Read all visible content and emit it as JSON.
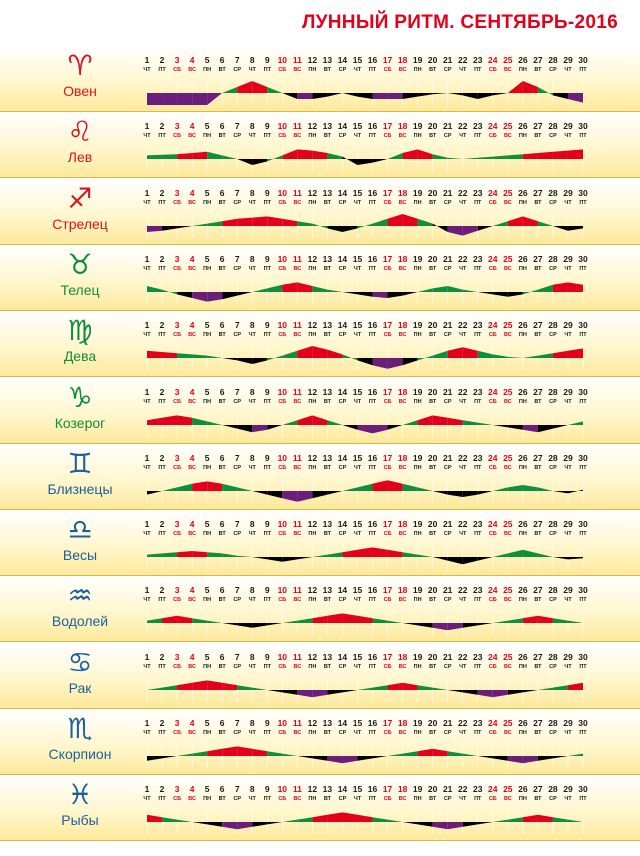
{
  "title": "ЛУННЫЙ РИТМ. СЕНТЯБРЬ-2016",
  "colors": {
    "up_strong": "#e3001b",
    "up_mild": "#0e8f3c",
    "down_strong": "#6b1d7c",
    "down_mild": "#000000",
    "weekend_text": "#e3001b",
    "weekday_text": "#1a1a1a"
  },
  "chart_data": {
    "type": "area",
    "x_days": [
      1,
      2,
      3,
      4,
      5,
      6,
      7,
      8,
      9,
      10,
      11,
      12,
      13,
      14,
      15,
      16,
      17,
      18,
      19,
      20,
      21,
      22,
      23,
      24,
      25,
      26,
      27,
      28,
      29,
      30
    ],
    "weekdays": [
      "ЧТ",
      "ПТ",
      "СБ",
      "ВС",
      "ПН",
      "ВТ",
      "СР",
      "ЧТ",
      "ПТ",
      "СБ",
      "ВС",
      "ПН",
      "ВТ",
      "СР",
      "ЧТ",
      "ПТ",
      "СБ",
      "ВС",
      "ПН",
      "ВТ",
      "СР",
      "ЧТ",
      "ПТ",
      "СБ",
      "ВС",
      "ПН",
      "ВТ",
      "СР",
      "ЧТ",
      "ПТ"
    ],
    "weekend_days": [
      3,
      4,
      10,
      11,
      17,
      18,
      24,
      25
    ],
    "rows": [
      {
        "name": "Овен",
        "glyph": "♈",
        "color": "#d8141f",
        "profile": [
          -5,
          -4,
          -3,
          -2,
          -1,
          0,
          0.5,
          1,
          0.5,
          0,
          -0.5,
          -0.5,
          -0.3,
          0,
          -0.3,
          -0.5,
          -0.5,
          -0.5,
          -0.3,
          -0.1,
          0,
          -0.2,
          -0.5,
          -0.2,
          0,
          1,
          0.5,
          -0.2,
          -0.5,
          -0.8
        ]
      },
      {
        "name": "Лев",
        "glyph": "♌",
        "color": "#d8141f",
        "profile": [
          0.3,
          0.35,
          0.4,
          0.5,
          0.6,
          0.3,
          0,
          -0.5,
          -0.2,
          0.3,
          0.8,
          0.7,
          0.5,
          0.2,
          -0.5,
          -0.3,
          0,
          0.5,
          0.8,
          0.4,
          0.1,
          0,
          0.1,
          0.2,
          0.3,
          0.4,
          0.5,
          0.6,
          0.7,
          0.8
        ]
      },
      {
        "name": "Стрелец",
        "glyph": "♐",
        "color": "#d8141f",
        "profile": [
          -0.5,
          -0.4,
          -0.2,
          0,
          0.2,
          0.4,
          0.6,
          0.7,
          0.8,
          0.6,
          0.4,
          0.2,
          -0.2,
          -0.5,
          -0.2,
          0.2,
          0.6,
          1,
          0.6,
          0.2,
          -0.5,
          -0.8,
          -0.4,
          0,
          0.4,
          0.8,
          0.4,
          0,
          -0.4,
          -0.2
        ]
      },
      {
        "name": "Телец",
        "glyph": "♉",
        "color": "#0e8f3c",
        "profile": [
          0.5,
          0.2,
          -0.2,
          -0.5,
          -0.8,
          -0.6,
          -0.3,
          0,
          0.3,
          0.6,
          0.8,
          0.5,
          0.2,
          0,
          -0.2,
          -0.4,
          -0.5,
          -0.3,
          0,
          0.3,
          0.5,
          0.2,
          0,
          -0.2,
          -0.4,
          -0.2,
          0.2,
          0.6,
          0.8,
          0.6
        ]
      },
      {
        "name": "Дева",
        "glyph": "♍",
        "color": "#0e8f3c",
        "profile": [
          0.6,
          0.5,
          0.4,
          0.3,
          0.2,
          0,
          -0.2,
          -0.5,
          -0.2,
          0.2,
          0.6,
          1,
          0.7,
          0.3,
          -0.2,
          -0.6,
          -0.9,
          -0.6,
          -0.2,
          0.2,
          0.6,
          0.9,
          0.6,
          0.3,
          0.1,
          0,
          0.2,
          0.4,
          0.6,
          0.8
        ]
      },
      {
        "name": "Козерог",
        "glyph": "♑",
        "color": "#0e8f3c",
        "profile": [
          0.4,
          0.6,
          0.8,
          0.6,
          0.3,
          0,
          -0.3,
          -0.6,
          -0.4,
          0,
          0.4,
          0.8,
          0.4,
          0,
          -0.4,
          -0.7,
          -0.4,
          0,
          0.4,
          0.8,
          0.6,
          0.4,
          0.2,
          0,
          -0.2,
          -0.4,
          -0.6,
          -0.3,
          0,
          0.3
        ]
      },
      {
        "name": "Близнецы",
        "glyph": "♊",
        "color": "#1b5f9e",
        "profile": [
          -0.3,
          0,
          0.3,
          0.6,
          0.8,
          0.6,
          0.3,
          0,
          -0.3,
          -0.6,
          -0.9,
          -0.6,
          -0.3,
          0,
          0.3,
          0.6,
          0.9,
          0.6,
          0.3,
          0,
          -0.3,
          -0.5,
          -0.3,
          0,
          0.3,
          0.5,
          0.3,
          0,
          -0.2,
          0.1
        ]
      },
      {
        "name": "Весы",
        "glyph": "♎",
        "color": "#1b5f9e",
        "profile": [
          0.2,
          0.3,
          0.4,
          0.5,
          0.4,
          0.3,
          0.1,
          0,
          -0.2,
          -0.4,
          -0.2,
          0,
          0.2,
          0.4,
          0.6,
          0.8,
          0.6,
          0.4,
          0.2,
          0,
          -0.3,
          -0.6,
          -0.3,
          0,
          0.3,
          0.6,
          0.3,
          0,
          -0.2,
          -0.1
        ]
      },
      {
        "name": "Водолей",
        "glyph": "♒",
        "color": "#1b5f9e",
        "profile": [
          0.2,
          0.4,
          0.6,
          0.4,
          0.2,
          0,
          -0.2,
          -0.4,
          -0.2,
          0,
          0.2,
          0.4,
          0.6,
          0.8,
          0.6,
          0.4,
          0.2,
          0,
          -0.2,
          -0.4,
          -0.6,
          -0.4,
          -0.2,
          0,
          0.2,
          0.4,
          0.6,
          0.4,
          0.2,
          0
        ]
      },
      {
        "name": "Рак",
        "glyph": "♋",
        "color": "#1b5f9e",
        "profile": [
          0,
          0.2,
          0.4,
          0.6,
          0.8,
          0.6,
          0.4,
          0.2,
          0,
          -0.2,
          -0.4,
          -0.6,
          -0.4,
          -0.2,
          0,
          0.2,
          0.4,
          0.6,
          0.4,
          0.2,
          0,
          -0.2,
          -0.4,
          -0.6,
          -0.4,
          -0.2,
          0,
          0.2,
          0.4,
          0.6
        ]
      },
      {
        "name": "Скорпион",
        "glyph": "♏",
        "color": "#1b5f9e",
        "profile": [
          -0.4,
          -0.2,
          0,
          0.2,
          0.4,
          0.6,
          0.8,
          0.6,
          0.4,
          0.2,
          0,
          -0.2,
          -0.4,
          -0.6,
          -0.4,
          -0.2,
          0,
          0.2,
          0.4,
          0.6,
          0.4,
          0.2,
          0,
          -0.2,
          -0.4,
          -0.6,
          -0.4,
          -0.2,
          0,
          0.2
        ]
      },
      {
        "name": "Рыбы",
        "glyph": "♓",
        "color": "#1b5f9e",
        "profile": [
          0.6,
          0.4,
          0.2,
          0,
          -0.2,
          -0.4,
          -0.6,
          -0.4,
          -0.2,
          0,
          0.2,
          0.4,
          0.6,
          0.8,
          0.6,
          0.4,
          0.2,
          0,
          -0.2,
          -0.4,
          -0.6,
          -0.4,
          -0.2,
          0,
          0.2,
          0.4,
          0.6,
          0.4,
          0.2,
          0
        ]
      }
    ]
  }
}
